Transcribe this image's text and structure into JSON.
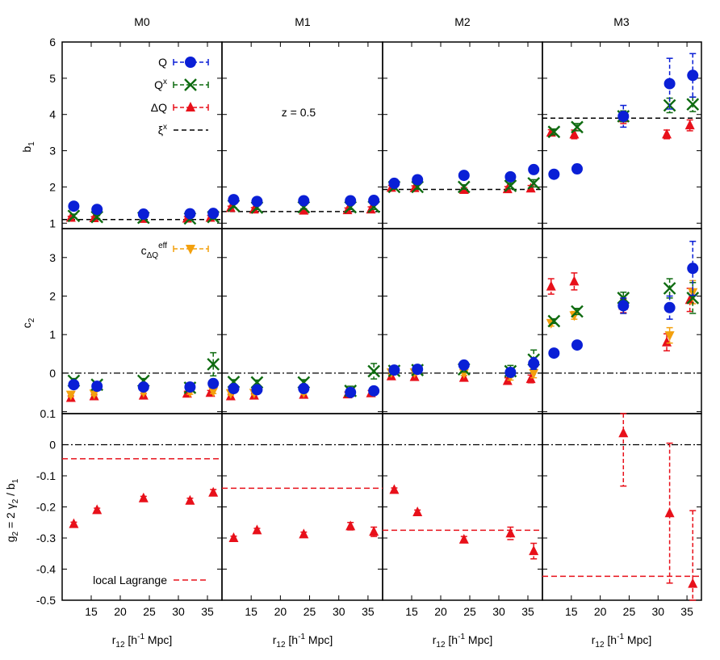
{
  "colors": {
    "Q": "#0a1fd6",
    "Qx": "#0e6b10",
    "dQ": "#e8101a",
    "c_eff": "#f3a00d",
    "xi_line": "#000000",
    "local_lagrange": "#e8101a"
  },
  "figure": {
    "panel_titles": [
      "M0",
      "M1",
      "M2",
      "M3"
    ],
    "xlabel_main": "r",
    "xlabel_sub": "12",
    "xlabel_rest": " [h",
    "xlabel_sup": "-1",
    "xlabel_end": " Mpc]",
    "ylabel_row1_main": "b",
    "ylabel_row1_sub": "1",
    "ylabel_row2_main": "c",
    "ylabel_row2_sub": "2",
    "ylabel_row3_a": "g",
    "ylabel_row3_b": "2",
    "ylabel_row3_c": " = 2 γ",
    "ylabel_row3_d": "2",
    "ylabel_row3_e": " / b",
    "ylabel_row3_f": "1",
    "annotation": "z = 0.5",
    "legend": {
      "Q": "Q",
      "Qx_main": "Q",
      "Qx_sup": "x",
      "dQ": "ΔQ",
      "xi_main": "ξ",
      "xi_sup": "x",
      "c_main": "c",
      "c_sub": "ΔQ",
      "c_sup": "eff",
      "local": "local Lagrange"
    }
  },
  "chart_data": {
    "type": "scatter",
    "x_ticks": [
      15,
      20,
      25,
      30,
      35
    ],
    "x_ticks_labeled": [
      "15",
      "20",
      "25",
      "30",
      "35"
    ],
    "xlim": [
      10,
      37.5
    ],
    "rows": [
      {
        "name": "b1",
        "ylim": [
          0.85,
          6
        ],
        "y_ticks": [
          1,
          2,
          3,
          4,
          5,
          6
        ],
        "y_tick_labels": [
          "1",
          "2",
          "3",
          "4",
          "5",
          "6"
        ]
      },
      {
        "name": "c2",
        "ylim": [
          -1.05,
          3.75
        ],
        "y_ticks": [
          -1,
          0,
          1,
          2,
          3
        ],
        "y_tick_labels": [
          "",
          "0",
          "1",
          "2",
          "3"
        ]
      },
      {
        "name": "g2",
        "ylim": [
          -0.5,
          0.1
        ],
        "y_ticks": [
          -0.5,
          -0.4,
          -0.3,
          -0.2,
          -0.1,
          0,
          0.1
        ],
        "y_tick_labels": [
          "-0.5",
          "-0.4",
          "-0.3",
          "-0.2",
          "-0.1",
          "0",
          "0.1"
        ]
      }
    ],
    "panels": [
      {
        "b1": {
          "Q": [
            [
              12,
              1.47,
              0.05
            ],
            [
              16,
              1.38,
              0.04
            ],
            [
              24,
              1.25,
              0.04
            ],
            [
              32,
              1.26,
              0.05
            ],
            [
              36,
              1.27,
              0.06
            ]
          ],
          "Qx": [
            [
              12,
              1.2,
              0.05
            ],
            [
              16,
              1.17,
              0.04
            ],
            [
              24,
              1.15,
              0.04
            ],
            [
              32,
              1.13,
              0.05
            ],
            [
              36,
              1.17,
              0.06
            ]
          ],
          "dQ": [
            [
              11.5,
              1.15,
              0.04
            ],
            [
              15.5,
              1.14,
              0.04
            ],
            [
              24,
              1.12,
              0.04
            ],
            [
              31.5,
              1.13,
              0.05
            ],
            [
              35.5,
              1.15,
              0.06
            ]
          ],
          "xi": 1.1
        },
        "c2": {
          "Q": [
            [
              12,
              -0.3,
              0.05
            ],
            [
              16,
              -0.34,
              0.05
            ],
            [
              24,
              -0.36,
              0.05
            ],
            [
              32,
              -0.36,
              0.06
            ],
            [
              36,
              -0.27,
              0.06
            ]
          ],
          "Qx": [
            [
              12,
              -0.2,
              0.06
            ],
            [
              16,
              -0.3,
              0.06
            ],
            [
              24,
              -0.2,
              0.06
            ],
            [
              32,
              -0.38,
              0.07
            ],
            [
              36,
              0.23,
              0.3
            ]
          ],
          "dQ": [
            [
              11.5,
              -0.64,
              0.05
            ],
            [
              15.5,
              -0.6,
              0.05
            ],
            [
              24,
              -0.58,
              0.05
            ],
            [
              31.5,
              -0.53,
              0.06
            ],
            [
              35.5,
              -0.51,
              0.06
            ]
          ],
          "c_eff": [
            [
              11.5,
              -0.56,
              0.05
            ],
            [
              15.5,
              -0.53,
              0.05
            ],
            [
              24,
              -0.49,
              0.05
            ],
            [
              32,
              -0.49,
              0.06
            ],
            [
              36,
              -0.47,
              0.06
            ]
          ]
        },
        "g2": {
          "dQ": [
            [
              12,
              -0.255,
              0.006
            ],
            [
              16,
              -0.21,
              0.006
            ],
            [
              24,
              -0.172,
              0.006
            ],
            [
              32,
              -0.18,
              0.008
            ],
            [
              36,
              -0.154,
              0.01
            ]
          ],
          "local": -0.045
        }
      },
      {
        "b1": {
          "Q": [
            [
              12,
              1.65,
              0.05
            ],
            [
              16,
              1.6,
              0.05
            ],
            [
              24,
              1.62,
              0.05
            ],
            [
              32,
              1.62,
              0.06
            ],
            [
              36,
              1.63,
              0.07
            ]
          ],
          "Qx": [
            [
              12,
              1.48,
              0.05
            ],
            [
              16,
              1.43,
              0.05
            ],
            [
              24,
              1.44,
              0.05
            ],
            [
              32,
              1.44,
              0.06
            ],
            [
              36,
              1.45,
              0.07
            ]
          ],
          "dQ": [
            [
              11.5,
              1.42,
              0.05
            ],
            [
              15.5,
              1.38,
              0.05
            ],
            [
              24,
              1.35,
              0.05
            ],
            [
              31.5,
              1.36,
              0.06
            ],
            [
              35.5,
              1.38,
              0.07
            ]
          ],
          "xi": 1.32
        },
        "c2": {
          "Q": [
            [
              12,
              -0.4,
              0.06
            ],
            [
              16,
              -0.43,
              0.06
            ],
            [
              24,
              -0.4,
              0.06
            ],
            [
              32,
              -0.5,
              0.08
            ],
            [
              36,
              -0.46,
              0.1
            ]
          ],
          "Qx": [
            [
              12,
              -0.23,
              0.06
            ],
            [
              16,
              -0.24,
              0.06
            ],
            [
              24,
              -0.24,
              0.07
            ],
            [
              32,
              -0.46,
              0.12
            ],
            [
              36,
              0.05,
              0.2
            ]
          ],
          "dQ": [
            [
              11.5,
              -0.6,
              0.05
            ],
            [
              15.5,
              -0.58,
              0.05
            ],
            [
              24,
              -0.56,
              0.05
            ],
            [
              31.5,
              -0.55,
              0.06
            ],
            [
              35.5,
              -0.52,
              0.07
            ]
          ],
          "c_eff": [
            [
              11.5,
              -0.52,
              0.05
            ],
            [
              15.5,
              -0.51,
              0.05
            ],
            [
              24,
              -0.5,
              0.05
            ],
            [
              32,
              -0.47,
              0.08
            ],
            [
              36,
              -0.48,
              0.08
            ]
          ]
        },
        "g2": {
          "dQ": [
            [
              12,
              -0.3,
              0.006
            ],
            [
              16,
              -0.275,
              0.006
            ],
            [
              24,
              -0.288,
              0.007
            ],
            [
              32,
              -0.262,
              0.012
            ],
            [
              36,
              -0.28,
              0.015
            ]
          ],
          "local": -0.14
        }
      },
      {
        "b1": {
          "Q": [
            [
              12,
              2.1,
              0.06
            ],
            [
              16,
              2.2,
              0.06
            ],
            [
              24,
              2.32,
              0.07
            ],
            [
              32,
              2.28,
              0.08
            ],
            [
              36,
              2.48,
              0.1
            ]
          ],
          "Qx": [
            [
              12,
              2.0,
              0.06
            ],
            [
              16,
              2.0,
              0.06
            ],
            [
              24,
              2.0,
              0.06
            ],
            [
              32,
              2.03,
              0.08
            ],
            [
              36,
              2.1,
              0.1
            ]
          ],
          "dQ": [
            [
              11.5,
              1.98,
              0.06
            ],
            [
              15.5,
              1.97,
              0.06
            ],
            [
              24,
              1.92,
              0.06
            ],
            [
              31.5,
              1.94,
              0.07
            ],
            [
              35.5,
              1.96,
              0.08
            ]
          ],
          "xi": 1.93
        },
        "c2": {
          "Q": [
            [
              12,
              0.08,
              0.05
            ],
            [
              16,
              0.1,
              0.06
            ],
            [
              24,
              0.21,
              0.07
            ],
            [
              32,
              0.02,
              0.1
            ],
            [
              36,
              0.25,
              0.15
            ]
          ],
          "Qx": [
            [
              12,
              0.06,
              0.05
            ],
            [
              16,
              0.08,
              0.06
            ],
            [
              24,
              0.1,
              0.07
            ],
            [
              32,
              0.05,
              0.15
            ],
            [
              36,
              0.35,
              0.25
            ]
          ],
          "dQ": [
            [
              11.5,
              -0.08,
              0.05
            ],
            [
              15.5,
              -0.1,
              0.06
            ],
            [
              24,
              -0.12,
              0.06
            ],
            [
              31.5,
              -0.2,
              0.08
            ],
            [
              35.5,
              -0.15,
              0.1
            ]
          ],
          "c_eff": [
            [
              11.5,
              0.02,
              0.05
            ],
            [
              15.5,
              0.02,
              0.06
            ],
            [
              24,
              0.0,
              0.06
            ],
            [
              32,
              -0.08,
              0.1
            ],
            [
              36,
              0.0,
              0.12
            ]
          ]
        },
        "g2": {
          "dQ": [
            [
              12,
              -0.145,
              0.006
            ],
            [
              16,
              -0.217,
              0.007
            ],
            [
              24,
              -0.305,
              0.01
            ],
            [
              32,
              -0.285,
              0.02
            ],
            [
              36,
              -0.342,
              0.025
            ]
          ],
          "local": -0.275
        }
      },
      {
        "b1": {
          "Q": [
            [
              12,
              2.35,
              0.1
            ],
            [
              16,
              2.5,
              0.12
            ],
            [
              24,
              3.95,
              0.3
            ],
            [
              32,
              4.85,
              0.7
            ],
            [
              36,
              5.08,
              0.6
            ]
          ],
          "Qx": [
            [
              12,
              3.52,
              0.08
            ],
            [
              16,
              3.65,
              0.1
            ],
            [
              24,
              3.95,
              0.15
            ],
            [
              32,
              4.25,
              0.2
            ],
            [
              36,
              4.28,
              0.2
            ]
          ],
          "dQ": [
            [
              11.5,
              3.5,
              0.08
            ],
            [
              15.5,
              3.45,
              0.12
            ],
            [
              24,
              3.9,
              0.15
            ],
            [
              31.5,
              3.45,
              0.12
            ],
            [
              35.5,
              3.7,
              0.15
            ]
          ],
          "xi": 3.9
        },
        "c2": {
          "Q": [
            [
              12,
              0.52,
              0.05
            ],
            [
              16,
              0.73,
              0.07
            ],
            [
              24,
              1.75,
              0.2
            ],
            [
              32,
              1.7,
              0.3
            ],
            [
              36,
              2.72,
              0.7
            ]
          ],
          "Qx": [
            [
              12,
              1.35,
              0.06
            ],
            [
              16,
              1.6,
              0.08
            ],
            [
              24,
              1.95,
              0.15
            ],
            [
              32,
              2.2,
              0.25
            ],
            [
              36,
              1.95,
              0.4
            ]
          ],
          "dQ": [
            [
              11.5,
              2.25,
              0.2
            ],
            [
              15.5,
              2.38,
              0.22
            ],
            [
              24,
              1.75,
              0.18
            ],
            [
              31.5,
              0.8,
              0.22
            ],
            [
              35.5,
              1.9,
              0.3
            ]
          ],
          "c_eff": [
            [
              11.5,
              1.3,
              0.08
            ],
            [
              15.5,
              1.5,
              0.1
            ],
            [
              24,
              1.7,
              0.15
            ],
            [
              32,
              0.98,
              0.2
            ],
            [
              36,
              2.1,
              0.3
            ]
          ]
        },
        "g2": {
          "dQ": [
            [
              24,
              0.037,
              0.17
            ],
            [
              32,
              -0.22,
              0.225
            ],
            [
              36,
              -0.447,
              0.235
            ]
          ],
          "local": -0.423
        }
      }
    ]
  }
}
